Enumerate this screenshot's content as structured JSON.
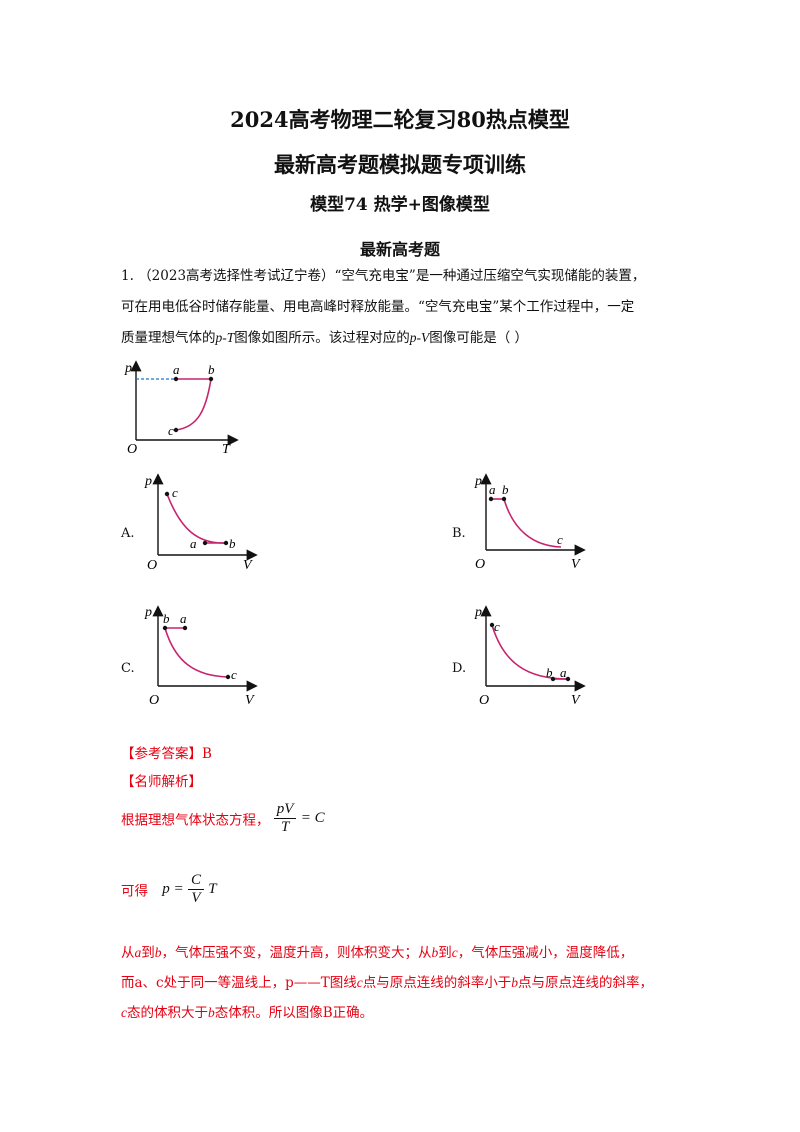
{
  "header": {
    "title_line1": "2024高考物理二轮复习80热点模型",
    "title_line2": "最新高考题模拟题专项训练",
    "title_line3": "模型74  热学+图像模型",
    "section": "最新高考题"
  },
  "question": {
    "line1": "1.  （2023高考选择性考试辽宁卷）“空气充电宝”是一种通过压缩空气实现储能的装置，",
    "line2": "可在用电低谷时储存能量、用电高峰时释放能量。“空气充电宝”某个工作过程中，一定",
    "line3a": "质量理想气体的",
    "line3b": "p-T",
    "line3c": "图像如图所示。该过程对应的",
    "line3d": "p-V",
    "line3e": "图像可能是（        ）"
  },
  "graph_labels": {
    "p": "p",
    "T": "T",
    "V": "V",
    "O": "O",
    "a": "a",
    "b": "b",
    "c": "c"
  },
  "options": {
    "A": "A.",
    "B": "B.",
    "C": "C.",
    "D": "D."
  },
  "answer": {
    "label": "【参考答案】B",
    "analysis_label": "【名师解析】",
    "line1_text": "根据理想气体状态方程，",
    "eq1_num": "pV",
    "eq1_den": "T",
    "eq1_rhs": "= C",
    "line2_text": "可得",
    "eq2_lhs": "p =",
    "eq2_num": "C",
    "eq2_den": "V",
    "eq2_rhs": "T",
    "p1_a": "从",
    "p1_b": "a",
    "p1_c": "到",
    "p1_d": "b",
    "p1_e": "，气体压强不变，温度升高，则体积变大；从",
    "p1_f": "b",
    "p1_g": "到",
    "p1_h": "c",
    "p1_i": "，气体压强减小，温度降低，",
    "p2_a": "而a、c处于同一等温线上，p——T图线",
    "p2_b": "c",
    "p2_c": "点与原点连线的斜率小于",
    "p2_d": "b",
    "p2_e": "点与原点连线的斜率，",
    "p3_a": "c",
    "p3_b": "态的体积大于",
    "p3_c": "b",
    "p3_d": "态体积。所以图像B正确。"
  },
  "colors": {
    "curve": "#c8246e",
    "dashed": "#1a73c8",
    "answer_red": "#e60012"
  }
}
